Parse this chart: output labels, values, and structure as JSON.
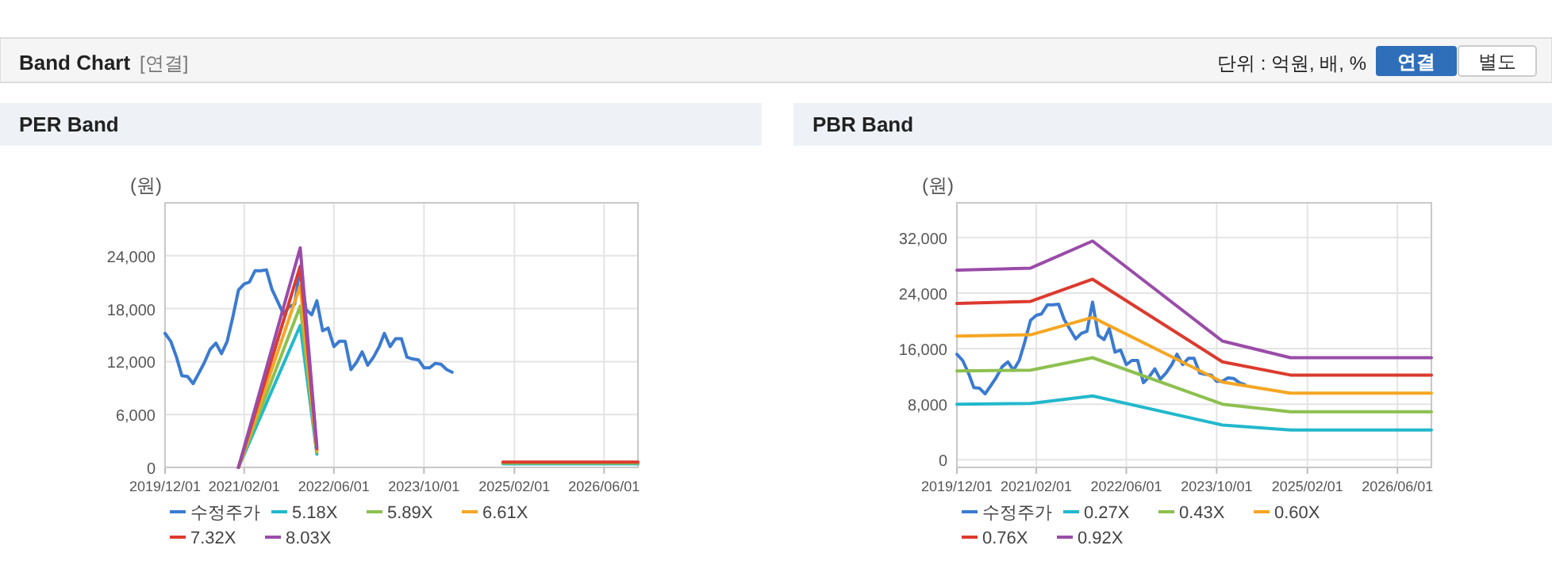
{
  "chart_data": [
    {
      "type": "other",
      "title": "Band Chart",
      "annotations": [
        "[연결]",
        "단위 : 억원, 배, %",
        "연결",
        "별도"
      ]
    },
    {
      "type": "line",
      "title": "PER Band",
      "ylabel": "(원)",
      "legend": "bottom",
      "grid": true,
      "xlim": [
        "2019-12-01",
        "2026-12-01"
      ],
      "xticks": [
        {
          "value": "2019-12-01",
          "label": "2019/12/01"
        },
        {
          "value": "2021-02-01",
          "label": "2021/02/01"
        },
        {
          "value": "2022-06-01",
          "label": "2022/06/01"
        },
        {
          "value": "2023-10-01",
          "label": "2023/10/01"
        },
        {
          "value": "2025-02-01",
          "label": "2025/02/01"
        },
        {
          "value": "2026-06-01",
          "label": "2026/06/01"
        }
      ],
      "ylim": [
        0,
        30000
      ],
      "yticks": [
        0,
        {
          "value": 6000,
          "label": "6,000"
        },
        {
          "value": 12000,
          "label": "12,000"
        },
        {
          "value": 18000,
          "label": "18,000"
        },
        {
          "value": 24000,
          "label": "24,000"
        }
      ],
      "x": [
        "2019-12-01",
        "2020-01-01",
        "2020-02-01",
        "2020-03-01",
        "2020-04-01",
        "2020-05-01",
        "2020-06-01",
        "2020-07-01",
        "2020-08-01",
        "2020-09-01",
        "2020-10-01",
        "2020-11-01",
        "2020-12-01",
        "2021-01-01",
        "2021-02-01",
        "2021-03-01",
        "2021-04-01",
        "2021-05-01",
        "2021-06-01",
        "2021-07-01",
        "2021-08-01",
        "2021-09-01",
        "2021-10-01",
        "2021-11-01",
        "2021-12-01",
        "2022-01-01",
        "2022-02-01",
        "2022-03-01",
        "2022-04-01",
        "2022-05-01",
        "2022-06-01",
        "2022-07-01",
        "2022-08-01",
        "2022-09-01",
        "2022-10-01",
        "2022-11-01",
        "2022-12-01",
        "2023-01-01",
        "2023-02-01",
        "2023-03-01",
        "2023-04-01",
        "2023-05-01",
        "2023-06-01",
        "2023-07-01",
        "2023-08-01",
        "2023-09-01",
        "2023-10-01",
        "2023-11-01",
        "2023-12-01",
        "2024-01-01",
        "2024-02-01",
        "2024-03-01"
      ],
      "series": [
        {
          "name": "수정주가",
          "color": "#3b7bd0",
          "values": [
            15200,
            14300,
            12500,
            10400,
            10300,
            9500,
            10700,
            11900,
            13400,
            14100,
            12900,
            14300,
            17000,
            20100,
            20800,
            21000,
            22300,
            22300,
            22400,
            20200,
            18800,
            17400,
            18200,
            18500,
            22700,
            17900,
            17300,
            18900,
            15500,
            15800,
            13700,
            14300,
            14300,
            11100,
            11900,
            13100,
            11600,
            12500,
            13700,
            15200,
            13700,
            14600,
            14600,
            12500,
            12300,
            12200,
            11300,
            11300,
            11800,
            11700,
            11100,
            10800
          ]
        },
        {
          "name": "5.18X",
          "color": "#22b8cc",
          "x": [
            "2021-01-01",
            "2021-12-01",
            "2022-03-01"
          ],
          "values": [
            0,
            16100,
            1500
          ]
        },
        {
          "name": "5.89X",
          "color": "#8dc04f",
          "x": [
            "2021-01-01",
            "2021-12-01",
            "2022-03-01"
          ],
          "values": [
            0,
            18300,
            1700
          ]
        },
        {
          "name": "6.61X",
          "color": "#f5a623",
          "x": [
            "2021-01-01",
            "2021-12-01",
            "2022-03-01"
          ],
          "values": [
            0,
            20600,
            1900
          ]
        },
        {
          "name": "7.32X",
          "color": "#dc3a2e",
          "x": [
            "2021-01-01",
            "2021-12-01",
            "2022-03-01"
          ],
          "values": [
            0,
            22800,
            2100
          ]
        },
        {
          "name": "8.03X",
          "color": "#9a4ca8",
          "x": [
            "2021-01-01",
            "2021-12-01",
            "2022-03-01"
          ],
          "values": [
            0,
            24900,
            2300
          ]
        },
        {
          "color": "#22b8cc",
          "x": [
            "2024-12-01",
            "2026-12-01"
          ],
          "values": [
            400,
            400
          ]
        },
        {
          "color": "#8dc04f",
          "x": [
            "2024-12-01",
            "2026-12-01"
          ],
          "values": [
            500,
            500
          ]
        },
        {
          "color": "#dc3a2e",
          "x": [
            "2024-12-01",
            "2026-12-01"
          ],
          "values": [
            600,
            600
          ]
        }
      ]
    },
    {
      "type": "line",
      "title": "PBR Band",
      "ylabel": "(원)",
      "legend": "bottom",
      "grid": true,
      "xlim": [
        "2019-12-01",
        "2026-12-01"
      ],
      "xticks": [
        {
          "value": "2019-12-01",
          "label": "2019/12/01"
        },
        {
          "value": "2021-02-01",
          "label": "2021/02/01"
        },
        {
          "value": "2022-06-01",
          "label": "2022/06/01"
        },
        {
          "value": "2023-10-01",
          "label": "2023/10/01"
        },
        {
          "value": "2025-02-01",
          "label": "2025/02/01"
        },
        {
          "value": "2026-06-01",
          "label": "2026/06/01"
        }
      ],
      "ylim": [
        -1100,
        37000
      ],
      "yticks": [
        0,
        {
          "value": 8000,
          "label": "8,000"
        },
        {
          "value": 16000,
          "label": "16,000"
        },
        {
          "value": 24000,
          "label": "24,000"
        },
        {
          "value": 32000,
          "label": "32,000"
        }
      ],
      "x": [
        "2019-12-01",
        "2020-01-01",
        "2020-02-01",
        "2020-03-01",
        "2020-04-01",
        "2020-05-01",
        "2020-06-01",
        "2020-07-01",
        "2020-08-01",
        "2020-09-01",
        "2020-10-01",
        "2020-11-01",
        "2020-12-01",
        "2021-01-01",
        "2021-02-01",
        "2021-03-01",
        "2021-04-01",
        "2021-05-01",
        "2021-06-01",
        "2021-07-01",
        "2021-08-01",
        "2021-09-01",
        "2021-10-01",
        "2021-11-01",
        "2021-12-01",
        "2022-01-01",
        "2022-02-01",
        "2022-03-01",
        "2022-04-01",
        "2022-05-01",
        "2022-06-01",
        "2022-07-01",
        "2022-08-01",
        "2022-09-01",
        "2022-10-01",
        "2022-11-01",
        "2022-12-01",
        "2023-01-01",
        "2023-02-01",
        "2023-03-01",
        "2023-04-01",
        "2023-05-01",
        "2023-06-01",
        "2023-07-01",
        "2023-08-01",
        "2023-09-01",
        "2023-10-01",
        "2023-11-01",
        "2023-12-01",
        "2024-01-01",
        "2024-02-01",
        "2024-03-01"
      ],
      "series": [
        {
          "name": "수정주가",
          "color": "#3b7bd0",
          "values": [
            15200,
            14300,
            12500,
            10400,
            10300,
            9500,
            10700,
            11900,
            13400,
            14100,
            12900,
            14300,
            17000,
            20100,
            20800,
            21000,
            22300,
            22300,
            22400,
            20200,
            18800,
            17400,
            18200,
            18500,
            22700,
            17900,
            17300,
            18900,
            15500,
            15800,
            13700,
            14300,
            14300,
            11100,
            11900,
            13100,
            11600,
            12500,
            13700,
            15200,
            13700,
            14600,
            14600,
            12500,
            12300,
            12200,
            11300,
            11300,
            11800,
            11700,
            11100,
            10800
          ]
        },
        {
          "name": "0.27X",
          "color": "#22b8cc",
          "x": [
            "2019-12-01",
            "2021-01-01",
            "2021-12-01",
            "2023-11-01",
            "2024-11-01",
            "2026-12-01"
          ],
          "values": [
            8000,
            8100,
            9200,
            5000,
            4300,
            4300
          ]
        },
        {
          "name": "0.43X",
          "color": "#8dc04f",
          "x": [
            "2019-12-01",
            "2021-01-01",
            "2021-12-01",
            "2023-11-01",
            "2024-11-01",
            "2026-12-01"
          ],
          "values": [
            12800,
            12900,
            14700,
            8000,
            6900,
            6900
          ]
        },
        {
          "name": "0.60X",
          "color": "#f5a623",
          "x": [
            "2019-12-01",
            "2021-01-01",
            "2021-12-01",
            "2023-11-01",
            "2024-11-01",
            "2026-12-01"
          ],
          "values": [
            17800,
            18000,
            20500,
            11200,
            9600,
            9600
          ]
        },
        {
          "name": "0.76X",
          "color": "#dc3a2e",
          "x": [
            "2019-12-01",
            "2021-01-01",
            "2021-12-01",
            "2023-11-01",
            "2024-11-01",
            "2026-12-01"
          ],
          "values": [
            22500,
            22800,
            26000,
            14100,
            12200,
            12200
          ]
        },
        {
          "name": "0.92X",
          "color": "#9a4ca8",
          "x": [
            "2019-12-01",
            "2021-01-01",
            "2021-12-01",
            "2023-11-01",
            "2024-11-01",
            "2026-12-01"
          ],
          "values": [
            27300,
            27600,
            31500,
            17100,
            14700,
            14700
          ]
        }
      ]
    }
  ]
}
